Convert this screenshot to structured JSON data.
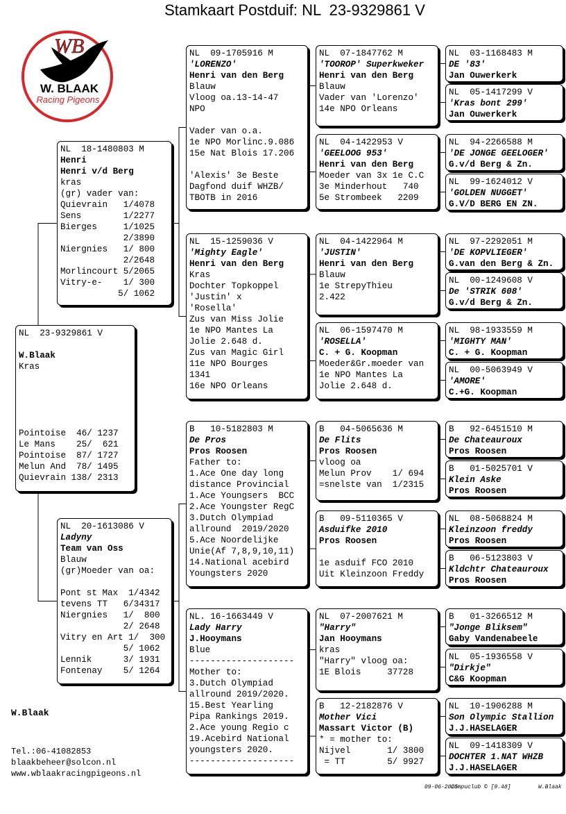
{
  "header": {
    "title": "Stamkaart Postduif: NL  23-9329861 V"
  },
  "logo": {
    "initials": "WB",
    "name": "W. BLAAK",
    "tagline": "Racing Pigeons"
  },
  "pedigree": {
    "subject": {
      "lines": [
        "NL  23-9329861 V",
        "W.Blaak",
        "Kras",
        "Pointoise  46/ 1237",
        "Le Mans    25/  621",
        "Pointoise  87/ 1727",
        "Melun And  78/ 1495",
        "Quievrain 138/ 2313"
      ]
    },
    "sire": {
      "lines": [
        "NL  18-1480803 M",
        "Henri",
        "Henri v/d Berg",
        "kras",
        "(gr) vader van:",
        "Quievrain   1/4078",
        "Sens        1/2277",
        "Bierges     1/1025",
        "            2/3890",
        "Niergnies   1/ 800",
        "            2/2648",
        "Morlincourt 5/2065",
        "Vitry-e-    1/ 300",
        "           5/ 1062"
      ]
    },
    "dam": {
      "lines": [
        "NL  20-1613086 V",
        "Ladyny",
        "Team van Oss",
        "Blauw",
        "(gr)Moeder van oa:",
        "Pont st Max  1/4342",
        "tevens TT   6/34317",
        "Niergnies   1/  800",
        "            2/ 2648",
        "Vitry en Art 1/  300",
        "            5/ 1062",
        "Lennik      3/ 1931",
        "Fontenay    5/ 1264"
      ]
    },
    "gen2": [
      {
        "lines": [
          "NL  09-1705916 M",
          "'LORENZO'",
          "Henri van den Berg",
          "Blauw",
          "Vloog oa.13-14-47",
          "NPO",
          "Vader van o.a.",
          "1e NPO Morlinc.9.086",
          "15e Nat Blois 17.206",
          "'Alexis' 3e Beste",
          "Dagfond duif WHZB/",
          "TBOTB in 2016"
        ]
      },
      {
        "lines": [
          "NL  15-1259036 V",
          "'Mighty Eagle'",
          "Henri van den Berg",
          "Kras",
          "Dochter Topkoppel",
          "'Justin' x",
          "'Rosella'",
          "Zus van Miss Jolie",
          "1e NPO Mantes La",
          "Jolie 2.648 d.",
          "Zus van Magic Girl",
          "11e NPO Bourges",
          "1341",
          "16e NPO Orleans"
        ]
      },
      {
        "lines": [
          "B   10-5182803 M",
          "De Pros",
          "Pros Roosen",
          "Father to:",
          "1.Ace One day long",
          "distance Provincial",
          "1.Ace Youngsers  BCC",
          "2.Ace Youngster RegC",
          "3.Dutch Olympiad",
          "allround  2019/2020",
          "5.Ace Noordelijke",
          "Unie(Af 7,8,9,10,11)",
          "14.National acebird",
          "Youngsters 2020"
        ]
      },
      {
        "lines": [
          "NL. 16-1663449 V",
          "Lady Harry",
          "J.Hooymans",
          "Blue",
          "--------------------",
          "Mother to:",
          "3.Dutch Olympiad",
          "allround 2019/2020.",
          "15.Best Yearling",
          "Pipa Rankings 2019.",
          "2.Ace young Regio c",
          "19.Acebird National",
          "youngsters 2020.",
          "--------------------"
        ]
      }
    ],
    "gen3": [
      {
        "lines": [
          "NL  07-1847762 M",
          "'TOOROP' Superkweker",
          "Henri van den Berg",
          "Blauw",
          "Vader van 'Lorenzo'",
          "14e NPO Orleans"
        ]
      },
      {
        "lines": [
          "NL  04-1422953 V",
          "'GEELOOG 953'",
          "Henri van den Berg",
          "Moeder van 3x 1e C.C",
          "3e Minderhout   740",
          "5e Strombeek   2209"
        ]
      },
      {
        "lines": [
          "NL  04-1422964 M",
          "'JUSTIN'",
          "Henri van den Berg",
          "Blauw",
          "1e StrepyThieu",
          "2.422"
        ]
      },
      {
        "lines": [
          "NL  06-1597470 M",
          "'ROSELLA'",
          "C. + G. Koopman",
          "Moeder&Gr.moeder van",
          "1e NPO Mantes La",
          "Jolie 2.648 d."
        ]
      },
      {
        "lines": [
          "B   04-5065636 M",
          "De Flits",
          "Pros Roosen",
          "vloog oa",
          "Melun Prov    1/ 694",
          "=snelste van  1/2315"
        ]
      },
      {
        "lines": [
          "B   09-5110365 V",
          "Asduifke 2010",
          "Pros Roosen",
          "1e asduif FCO 2010",
          "Uit Kleinzoon Freddy"
        ]
      },
      {
        "lines": [
          "NL  07-2007621 M",
          "\"Harry\"",
          "Jan Hooymans",
          "kras",
          "\"Harry\" vloog oa:",
          "1E Blois     37728"
        ]
      },
      {
        "lines": [
          "B   12-2182876 V",
          "Mother Vici",
          "Massart Victor (B)",
          "* = mother to:",
          "Nijvel       1/ 3800",
          " = TT        5/ 9927"
        ]
      }
    ],
    "gen4": [
      {
        "lines": [
          "NL  03-1168483 M",
          "DE '83'",
          "Jan Ouwerkerk"
        ]
      },
      {
        "lines": [
          "NL  05-1417299 V",
          "'Kras bont 299'",
          "Jan Ouwerkerk"
        ]
      },
      {
        "lines": [
          "NL  94-2266588 M",
          "'DE JONGE GEELOGER'",
          "G.v/d Berg & Zn."
        ]
      },
      {
        "lines": [
          "NL  99-1624012 V",
          "'GOLDEN NUGGET'",
          "G.V/D BERG EN ZN."
        ]
      },
      {
        "lines": [
          "NL  97-2292051 M",
          "'DE KOPVLIEGER'",
          "G.van den Berg & Zn."
        ]
      },
      {
        "lines": [
          "NL  00-1249608 V",
          "De 'STRIK 608'",
          "G.v/d Berg & Zn."
        ]
      },
      {
        "lines": [
          "NL  98-1933559 M",
          "'MIGHTY MAN'",
          "C. + G. Koopman"
        ]
      },
      {
        "lines": [
          "NL  00-5063949 V",
          "'AMORE'",
          "C.+G. Koopman"
        ]
      },
      {
        "lines": [
          "B   92-6451510 M",
          "De Chateauroux",
          "Pros Roosen"
        ]
      },
      {
        "lines": [
          "B   01-5025701 V",
          "Klein Aske",
          "Pros Roosen"
        ]
      },
      {
        "lines": [
          "NL  08-5068824 M",
          "Kleinzoon freddy",
          "Pros Roosen"
        ]
      },
      {
        "lines": [
          "B   06-5123803 V",
          "Kldchtr Chateauroux",
          "Pros Roosen"
        ]
      },
      {
        "lines": [
          "B   01-3266512 M",
          "\"Jonge Bliksem\"",
          "Gaby Vandenabeele"
        ]
      },
      {
        "lines": [
          "NL  05-1936558 V",
          "\"Dirkje\"",
          "C&G Koopman"
        ]
      },
      {
        "lines": [
          "NL  10-1906288 M",
          "Son Olympic Stallion",
          "J.J.HASELAGER"
        ]
      },
      {
        "lines": [
          "NL  09-1418309 V",
          "DOCHTER 1.NAT WHZB",
          "J.J.HASELAGER"
        ]
      }
    ]
  },
  "owner": {
    "name": "W.Blaak",
    "phone": "Tel.:06-41082853",
    "email": "blaakbeheer@solcon.nl",
    "website": "www.wblaakracingpigeons.nl"
  },
  "footer": {
    "date": "09-06-2025",
    "software": "Compuclub © [9.48]",
    "owner": "W.Blaak"
  }
}
